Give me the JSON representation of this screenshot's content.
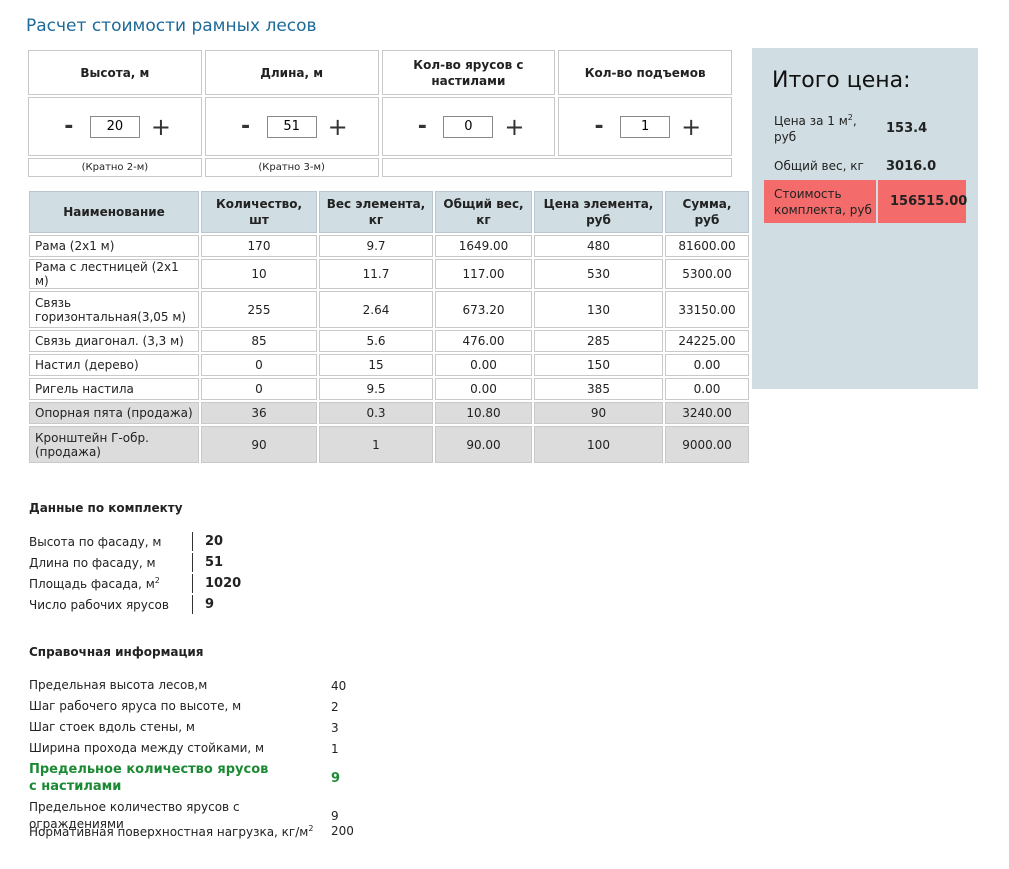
{
  "page_title": "Расчет стоимости рамных лесов",
  "params": [
    {
      "label": "Высота, м",
      "value": "20",
      "hint": "(Кратно 2-м)",
      "minus": "-",
      "plus": "+"
    },
    {
      "label": "Длина, м",
      "value": "51",
      "hint": "(Кратно 3-м)",
      "minus": "-",
      "plus": "+"
    },
    {
      "label": "Кол-во ярусов с настилами",
      "value": "0",
      "hint": "",
      "minus": "-",
      "plus": "+"
    },
    {
      "label": "Кол-во подъемов",
      "value": "1",
      "hint": "",
      "minus": "-",
      "plus": "+"
    }
  ],
  "table": {
    "headers": [
      "Наименование",
      "Количество, шт",
      "Вес элемента, кг",
      "Общий вес, кг",
      "Цена элемента, руб",
      "Сумма, руб"
    ],
    "rows": [
      [
        "Рама (2х1 м)",
        "170",
        "9.7",
        "1649.00",
        "480",
        "81600.00"
      ],
      [
        "Рама с лестницей (2х1 м)",
        "10",
        "11.7",
        "117.00",
        "530",
        "5300.00"
      ],
      [
        "Связь горизонтальная(3,05 м)",
        "255",
        "2.64",
        "673.20",
        "130",
        "33150.00"
      ],
      [
        "Связь диагонал. (3,3 м)",
        "85",
        "5.6",
        "476.00",
        "285",
        "24225.00"
      ],
      [
        "Настил (дерево)",
        "0",
        "15",
        "0.00",
        "150",
        "0.00"
      ],
      [
        "Ригель настила",
        "0",
        "9.5",
        "0.00",
        "385",
        "0.00"
      ],
      [
        "Опорная пята (продажа)",
        "36",
        "0.3",
        "10.80",
        "90",
        "3240.00"
      ],
      [
        "Кронштейн Г-обр. (продажа)",
        "90",
        "1",
        "90.00",
        "100",
        "9000.00"
      ]
    ]
  },
  "summary": {
    "title": "Итого цена:",
    "price_per_m2_label": "Цена за 1 м",
    "price_per_m2_sup": "2",
    "price_per_m2_suffix": ", руб",
    "price_per_m2_value": "153.4",
    "total_weight_label": "Общий вес, кг",
    "total_weight_value": "3016.0",
    "kit_cost_label": "Стоимость комплекта, руб",
    "kit_cost_value": "156515.00",
    "total_color": "#f36b6b"
  },
  "kit": {
    "title": "Данные по комплекту",
    "rows": [
      {
        "label": "Высота по фасаду, м",
        "value": "20"
      },
      {
        "label": "Длина по фасаду, м",
        "value": "51"
      },
      {
        "label": "Площадь фасада, м",
        "sup": "2",
        "value": "1020"
      },
      {
        "label": "Число рабочих ярусов",
        "value": "9"
      }
    ]
  },
  "reference": {
    "title": "Справочная информация",
    "rows": [
      {
        "label": "Предельная высота лесов,м",
        "value": "40"
      },
      {
        "label": "Шаг рабочего яруса по высоте, м",
        "value": "2"
      },
      {
        "label": "Шаг стоек вдоль стены, м",
        "value": "3"
      },
      {
        "label": "Ширина прохода между стойками, м",
        "value": "1"
      },
      {
        "label": "Предельное количество ярусов с настилами",
        "value": "9",
        "highlight": true
      },
      {
        "label": "Предельное количество ярусов с ограждениями",
        "value": "9"
      },
      {
        "label": "Нормативная поверхностная нагрузка, кг/м",
        "sup": "2",
        "value": "200"
      }
    ]
  }
}
